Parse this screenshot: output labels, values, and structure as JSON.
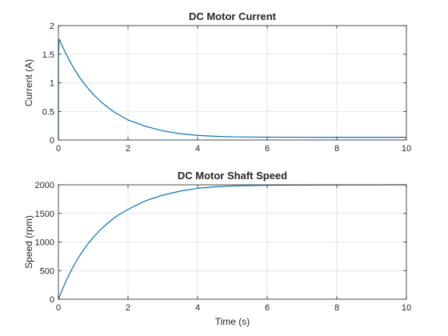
{
  "chart_data": [
    {
      "type": "line",
      "title": "DC Motor Current",
      "xlabel": "",
      "ylabel": "Current (A)",
      "xlim": [
        0,
        10
      ],
      "ylim": [
        0,
        2
      ],
      "xticks": [
        "0",
        "2",
        "4",
        "6",
        "8",
        "10"
      ],
      "yticks": [
        "0",
        "0.5",
        "1",
        "1.5",
        "2"
      ],
      "grid": true,
      "color": "#0072BD",
      "series": [
        {
          "x": [
            0,
            0,
            0.02,
            0.05,
            0.1,
            0.2,
            0.3,
            0.4,
            0.5,
            0.6,
            0.8,
            1.0,
            1.2,
            1.4,
            1.6,
            1.8,
            2.0,
            2.5,
            3.0,
            3.5,
            4.0,
            4.5,
            5.0,
            6.0,
            7.0,
            8.0,
            9.0,
            10.0
          ],
          "y": [
            0,
            1.45,
            1.76,
            1.73,
            1.66,
            1.53,
            1.41,
            1.3,
            1.2,
            1.1,
            0.94,
            0.8,
            0.68,
            0.58,
            0.49,
            0.42,
            0.35,
            0.24,
            0.16,
            0.11,
            0.08,
            0.065,
            0.055,
            0.05,
            0.048,
            0.047,
            0.047,
            0.047
          ]
        }
      ]
    },
    {
      "type": "line",
      "title": "DC Motor Shaft Speed",
      "xlabel": "Time (s)",
      "ylabel": "Speed (rpm)",
      "xlim": [
        0,
        10
      ],
      "ylim": [
        0,
        2000
      ],
      "xticks": [
        "0",
        "2",
        "4",
        "6",
        "8",
        "10"
      ],
      "yticks": [
        "0",
        "500",
        "1000",
        "1500",
        "2000"
      ],
      "grid": true,
      "color": "#0072BD",
      "series": [
        {
          "x": [
            0,
            0.1,
            0.2,
            0.3,
            0.4,
            0.5,
            0.6,
            0.8,
            1.0,
            1.2,
            1.4,
            1.6,
            1.8,
            2.0,
            2.5,
            3.0,
            3.5,
            4.0,
            4.5,
            5.0,
            6.0,
            7.0,
            8.0,
            9.0,
            10.0
          ],
          "y": [
            0,
            150,
            290,
            420,
            540,
            650,
            750,
            930,
            1080,
            1210,
            1320,
            1420,
            1500,
            1570,
            1720,
            1820,
            1890,
            1940,
            1965,
            1980,
            1992,
            1996,
            1998,
            1999,
            2000
          ]
        }
      ]
    }
  ]
}
